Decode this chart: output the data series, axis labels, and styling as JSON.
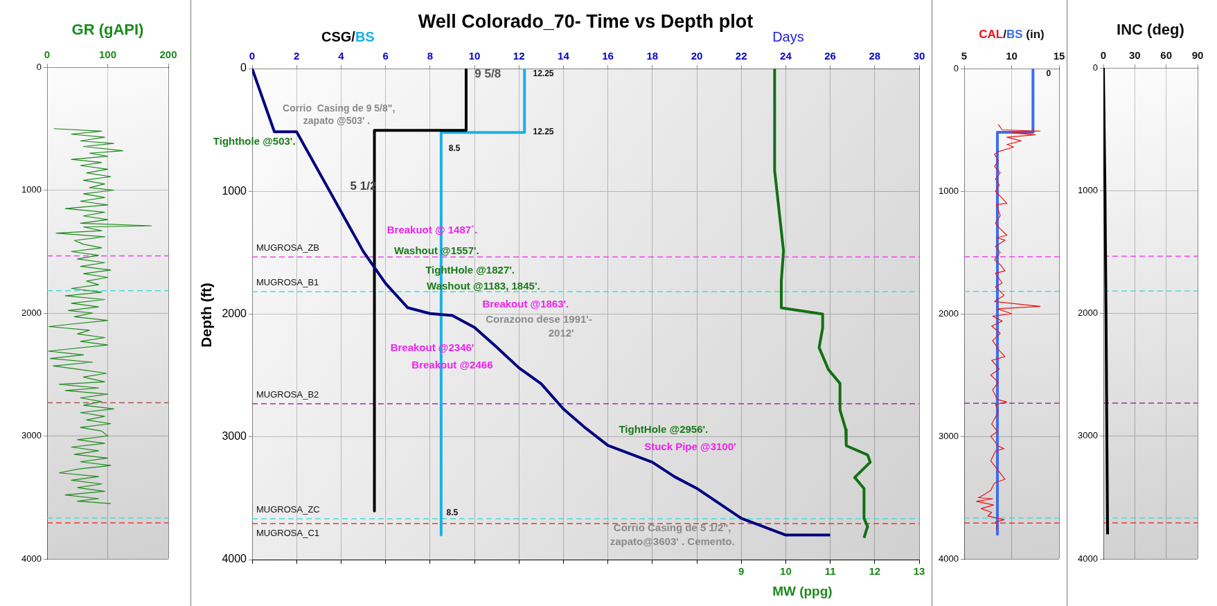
{
  "chart_data": [
    {
      "type": "line",
      "xlabel": "GR (gAPI)",
      "xlim": [
        0,
        200
      ],
      "xticks": [
        0,
        100,
        200
      ],
      "ylim": [
        4000,
        0
      ],
      "yticks": [
        0,
        1000,
        2000,
        3000,
        4000
      ],
      "grid": true,
      "series": [
        {
          "color": "#1a8a1a",
          "x": [
            11,
            90,
            40,
            95,
            55,
            110,
            60,
            125,
            70,
            100,
            40,
            90,
            55,
            100,
            65,
            105,
            60,
            95,
            70,
            110,
            60,
            95,
            55,
            100,
            30,
            95,
            60,
            100,
            55,
            172,
            60,
            90,
            15,
            95,
            45,
            60,
            90,
            40,
            85,
            50,
            95,
            55,
            105,
            60,
            100,
            65,
            85,
            40,
            90,
            30,
            95,
            40,
            85,
            35,
            75,
            45,
            100,
            40,
            3,
            70,
            50,
            95,
            55,
            100,
            40,
            2,
            60,
            5,
            75,
            10,
            55,
            98,
            60,
            95,
            20,
            85,
            30,
            100,
            55,
            90,
            60,
            110,
            55,
            95,
            65,
            105,
            55,
            90,
            100,
            50,
            95,
            40,
            85,
            45,
            100,
            55,
            105,
            50,
            20,
            85,
            40,
            90,
            50,
            95,
            30,
            85,
            50,
            105
          ],
          "values": [
            500,
            520,
            545,
            570,
            600,
            620,
            645,
            680,
            700,
            725,
            750,
            775,
            800,
            830,
            860,
            890,
            920,
            950,
            980,
            1000,
            1030,
            1060,
            1090,
            1120,
            1150,
            1180,
            1210,
            1240,
            1270,
            1290,
            1300,
            1330,
            1350,
            1380,
            1410,
            1440,
            1470,
            1500,
            1530,
            1560,
            1590,
            1620,
            1650,
            1680,
            1710,
            1740,
            1770,
            1800,
            1830,
            1860,
            1890,
            1920,
            1950,
            1980,
            2000,
            2030,
            2060,
            2090,
            2110,
            2140,
            2170,
            2200,
            2230,
            2260,
            2290,
            2310,
            2340,
            2370,
            2400,
            2430,
            2460,
            2490,
            2520,
            2560,
            2580,
            2610,
            2630,
            2660,
            2690,
            2720,
            2750,
            2780,
            2810,
            2840,
            2870,
            2900,
            2930,
            2960,
            3000,
            3030,
            3060,
            3090,
            3120,
            3150,
            3180,
            3210,
            3240,
            3270,
            3300,
            3330,
            3360,
            3390,
            3420,
            3450,
            3480,
            3510,
            3530,
            3550
          ]
        }
      ],
      "ref_lines": [
        {
          "axis": "y",
          "value": 1535,
          "color": "#ee44ee",
          "line_style": "dashed"
        },
        {
          "axis": "y",
          "value": 1818,
          "color": "#44dddd",
          "line_style": "dashed"
        },
        {
          "axis": "y",
          "value": 2730,
          "color": "#aa5555",
          "line_style": "dashed"
        },
        {
          "axis": "y",
          "value": 3667,
          "color": "#44dddd",
          "line_style": "dashed"
        },
        {
          "axis": "y",
          "value": 3707,
          "color": "#ee3333",
          "line_style": "dashed"
        }
      ]
    },
    {
      "type": "line",
      "title": "Well Colorado_70- Time vs Depth plot",
      "xlabel": "Days",
      "x2label": "MW (ppg)",
      "ylabel": "Depth (ft)",
      "xlim": [
        0,
        30
      ],
      "xticks": [
        0,
        2,
        4,
        6,
        8,
        10,
        12,
        14,
        16,
        18,
        20,
        22,
        24,
        26,
        28,
        30
      ],
      "x2lim": [
        -2,
        13
      ],
      "x2ticks": [
        {
          "value": -2,
          "label": null
        },
        {
          "value": -1,
          "label": null
        },
        {
          "value": 0,
          "label": null
        },
        {
          "value": 1,
          "label": null
        },
        {
          "value": 2,
          "label": null
        },
        {
          "value": 3,
          "label": null
        },
        {
          "value": 4,
          "label": null
        },
        {
          "value": 5,
          "label": null
        },
        {
          "value": 6,
          "label": null
        },
        {
          "value": 7,
          "label": null
        },
        {
          "value": 8,
          "label": null
        },
        9,
        10,
        11,
        12,
        13
      ],
      "ylim": [
        4000,
        0
      ],
      "yticks": [
        0,
        1000,
        2000,
        3000,
        4000
      ],
      "grid": true,
      "series": [
        {
          "color": "#000080",
          "x": [
            0,
            1,
            2,
            5,
            5.5,
            6,
            7,
            8,
            9,
            10,
            11,
            12,
            13,
            14,
            15,
            16,
            18,
            19,
            20,
            22,
            24,
            26
          ],
          "values": [
            0,
            515,
            515,
            1490,
            1620,
            1750,
            1948,
            1996,
            2011,
            2108,
            2270,
            2438,
            2568,
            2773,
            2929,
            3070,
            3207,
            3325,
            3420,
            3664,
            3800,
            3800
          ]
        },
        {
          "name": "CSG",
          "color": "#000000",
          "x": [
            9.625,
            9.625,
            5.5,
            5.5
          ],
          "values": [
            0,
            503,
            503,
            3603
          ]
        },
        {
          "name": "BS",
          "color": "#1ab0e8",
          "x": [
            12.25,
            12.25,
            8.5,
            8.5
          ],
          "values": [
            0,
            520,
            520,
            3800
          ]
        },
        {
          "color": "#137013",
          "axis": "x2",
          "x": [
            9.75,
            9.75,
            9.95,
            9.9,
            9.9,
            10.83,
            10.83,
            10.75,
            10.96,
            11.22,
            11.22,
            11.35,
            11.36,
            11.84,
            11.9,
            11.55,
            11.76,
            11.76,
            11.84,
            11.76
          ],
          "values": [
            0,
            830,
            1485,
            1730,
            1949,
            2000,
            2113,
            2273,
            2452,
            2565,
            2781,
            2941,
            3072,
            3147,
            3207,
            3331,
            3420,
            3664,
            3730,
            3823
          ]
        }
      ],
      "annotations": [
        "/",
        "Corrio  Casing de 9 5/8\",",
        "zapato @503' .",
        "Tighthole @503'.",
        "9 5/8",
        "12.25",
        "12.25",
        "8.5",
        "5 1/2",
        "Breakuot @ 1487´.",
        "Washout @1557'.",
        "TightHole @1827'.",
        "Washout @1183, 1845'.",
        "Breakout @1863'.",
        "Corazono dese 1991'-",
        "2012'",
        "Breakout @2346'",
        "Breakout @2466",
        "TightHole @2956'.",
        "Stuck Pipe @3100'",
        "Corrio Casing de 5 1/2\",",
        "zapato@3603' . Cemento.",
        "8.5"
      ],
      "ref_lines": [
        {
          "axis": "y",
          "value": 1535,
          "label": "MUGROSA_ZB",
          "color": "#ee44ee",
          "line_style": "dashed"
        },
        {
          "axis": "y",
          "value": 1818,
          "label": "MUGROSA_B1",
          "color": "#44dddd",
          "line_style": "dashed"
        },
        {
          "axis": "y",
          "value": 2730,
          "label": "MUGROSA_B2",
          "color": "#993399",
          "line_style": "dashed"
        },
        {
          "axis": "y",
          "value": 3667,
          "label": "MUGROSA_ZC",
          "color": "#44dddd",
          "line_style": "dashed"
        },
        {
          "axis": "y",
          "value": 3707,
          "label": "MUGROSA_C1",
          "color": "#ee3333",
          "line_style": "dashed"
        }
      ]
    },
    {
      "type": "line",
      "xlabel": "(in)",
      "xlim": [
        5,
        15
      ],
      "xticks": [
        5,
        10,
        15
      ],
      "ylim": [
        4000,
        0
      ],
      "yticks": [
        0,
        1000,
        2000,
        3000,
        4000
      ],
      "grid": true,
      "series": [
        {
          "name": "CAL",
          "color": "#ee1111",
          "x": [
            8.6,
            9.0,
            13.0,
            10.0,
            12.5,
            9.5,
            11.0,
            9.5,
            10.2,
            8.5,
            8.2,
            8.6,
            8.2,
            8.8,
            8.3,
            8.7,
            8.3,
            8.9,
            9.5,
            8.4,
            8.8,
            8.3,
            8.7,
            9.5,
            8.4,
            9.3,
            8.3,
            8.8,
            8.2,
            8.8,
            9.3,
            8.3,
            9.0,
            8.3,
            9.2,
            8.2,
            13.0,
            8.5,
            10.0,
            8.0,
            9.0,
            7.9,
            8.8,
            8.0,
            8.7,
            9.3,
            7.9,
            8.7,
            7.8,
            8.6,
            8.0,
            8.5,
            9.5,
            8.3,
            8.6,
            7.9,
            8.5,
            7.8,
            8.6,
            9.2,
            8.3,
            7.8,
            8.4,
            9.3,
            8.2,
            7.8,
            7.0,
            6.5,
            8.0,
            6.3,
            8.1,
            6.8,
            7.9,
            7.5,
            9.2,
            8.3,
            8.5,
            8.4
          ],
          "values": [
            455,
            500,
            510,
            525,
            540,
            560,
            590,
            620,
            640,
            680,
            700,
            750,
            800,
            850,
            900,
            950,
            1000,
            1050,
            1100,
            1110,
            1200,
            1260,
            1300,
            1360,
            1380,
            1400,
            1450,
            1500,
            1560,
            1600,
            1650,
            1670,
            1750,
            1780,
            1850,
            1900,
            1940,
            1960,
            2000,
            2020,
            2060,
            2100,
            2160,
            2220,
            2300,
            2350,
            2380,
            2450,
            2500,
            2560,
            2620,
            2700,
            2720,
            2740,
            2800,
            2900,
            2960,
            3000,
            3080,
            3100,
            3120,
            3200,
            3260,
            3350,
            3380,
            3440,
            3480,
            3500,
            3510,
            3530,
            3560,
            3590,
            3620,
            3650,
            3680,
            3700,
            3730,
            3760
          ]
        },
        {
          "name": "BS",
          "color": "#3b6cf0",
          "x": [
            12.25,
            12.25,
            8.5,
            8.5
          ],
          "values": [
            0,
            520,
            520,
            3800
          ]
        }
      ],
      "annotations": [
        "/",
        "0"
      ],
      "ref_lines": [
        {
          "axis": "y",
          "value": 1535,
          "color": "#ee44ee",
          "line_style": "dashed"
        },
        {
          "axis": "y",
          "value": 1818,
          "color": "#44dddd",
          "line_style": "dashed"
        },
        {
          "axis": "y",
          "value": 2730,
          "color": "#993399",
          "line_style": "dashed"
        },
        {
          "axis": "y",
          "value": 3667,
          "color": "#44dddd",
          "line_style": "dashed"
        },
        {
          "axis": "y",
          "value": 3707,
          "color": "#ee3333",
          "line_style": "dashed"
        }
      ]
    },
    {
      "type": "line",
      "xlabel": "INC (deg)",
      "xlim": [
        0,
        90
      ],
      "xticks": [
        0,
        30,
        60,
        90
      ],
      "ylim": [
        4000,
        0
      ],
      "yticks": [
        0,
        1000,
        2000,
        3000,
        4000
      ],
      "grid": true,
      "series": [
        {
          "color": "#000000",
          "x": [
            0,
            1.5,
            2.5,
            3.3,
            4
          ],
          "values": [
            0,
            1000,
            2000,
            3000,
            3800
          ]
        }
      ],
      "ref_lines": [
        {
          "axis": "y",
          "value": 1535,
          "color": "#ee44ee",
          "line_style": "dashed"
        },
        {
          "axis": "y",
          "value": 1818,
          "color": "#44dddd",
          "line_style": "dashed"
        },
        {
          "axis": "y",
          "value": 2730,
          "color": "#993399",
          "line_style": "dashed"
        },
        {
          "axis": "y",
          "value": 3667,
          "color": "#44dddd",
          "line_style": "dashed"
        },
        {
          "axis": "y",
          "value": 3707,
          "color": "#ee3333",
          "line_style": "dashed"
        }
      ]
    }
  ]
}
